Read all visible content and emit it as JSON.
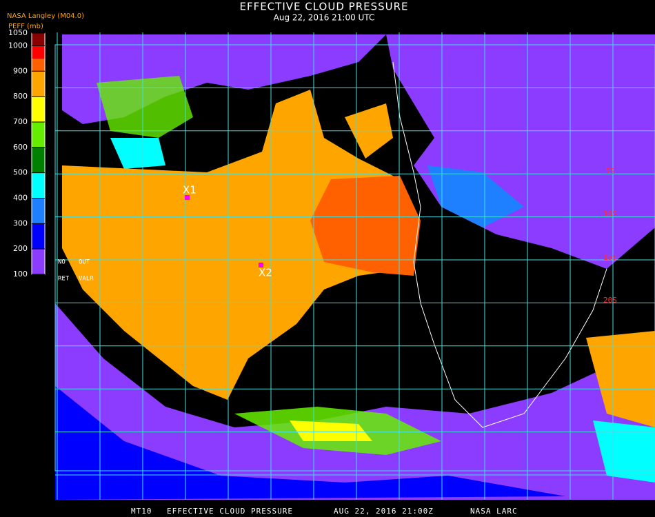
{
  "header": {
    "title": "EFFECTIVE CLOUD PRESSURE",
    "subtitle": "Aug 22, 2016 21:00 UTC",
    "source": "NASA Langley (M04.0)"
  },
  "colorbar": {
    "label": "PEFF (mb)",
    "range": [
      100,
      1050
    ],
    "ticks": [
      100,
      200,
      300,
      400,
      500,
      600,
      700,
      800,
      900,
      1000,
      1050
    ],
    "segments": [
      {
        "from": 100,
        "to": 200,
        "color": "#8c3cff"
      },
      {
        "from": 200,
        "to": 300,
        "color": "#0000ff"
      },
      {
        "from": 300,
        "to": 400,
        "color": "#1e7fff"
      },
      {
        "from": 400,
        "to": 500,
        "color": "#00ffff"
      },
      {
        "from": 500,
        "to": 600,
        "color": "#008000"
      },
      {
        "from": 600,
        "to": 700,
        "color": "#66ee00"
      },
      {
        "from": 700,
        "to": 800,
        "color": "#ffff00"
      },
      {
        "from": 800,
        "to": 900,
        "color": "#ffa500"
      },
      {
        "from": 900,
        "to": 950,
        "color": "#ff6000"
      },
      {
        "from": 950,
        "to": 1000,
        "color": "#ff0000"
      },
      {
        "from": 1000,
        "to": 1050,
        "color": "#8b0000"
      }
    ],
    "notes": [
      "NO",
      "OUT",
      "RET",
      "VALR"
    ]
  },
  "map": {
    "markers": [
      "X1",
      "X2"
    ],
    "lat_labels": [
      "5S",
      "10S",
      "15S",
      "20S"
    ]
  },
  "footer": {
    "product": "MT10",
    "title": "EFFECTIVE CLOUD PRESSURE",
    "time": "AUG 22, 2016 21:00Z",
    "source": "NASA LARC"
  }
}
